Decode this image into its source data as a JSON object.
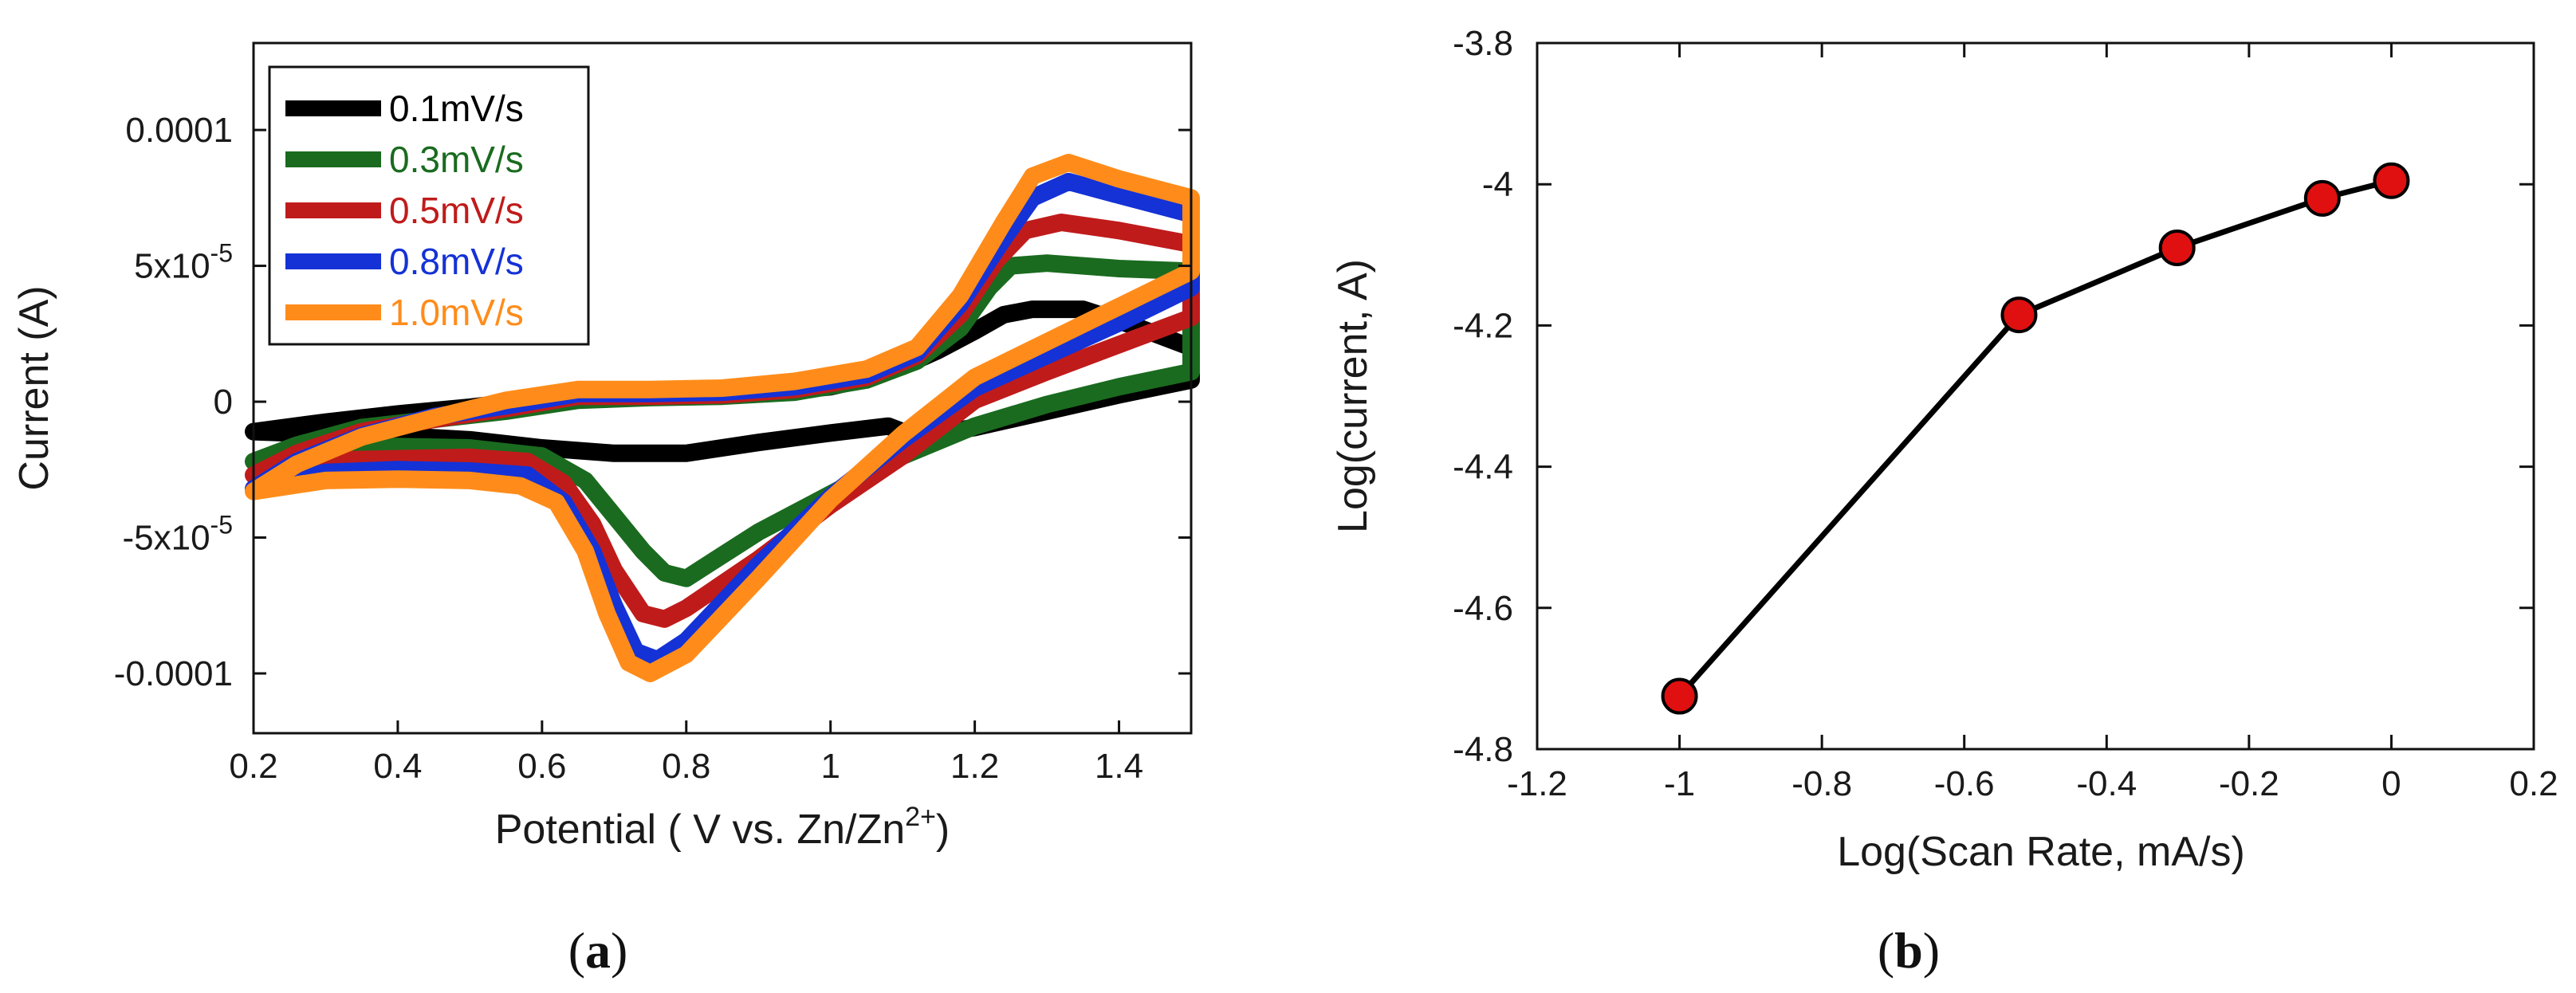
{
  "chart_data": [
    {
      "panel_label": "a",
      "type": "line",
      "title": "",
      "xlabel": "Potential ( V vs. Zn/Zn",
      "xlabel_sup": "2+",
      "xlabel_end": ")",
      "ylabel": "Current (A)",
      "xlim": [
        0.2,
        1.5
      ],
      "ylim": [
        -0.000122,
        0.000132
      ],
      "xticks": [
        {
          "value": 0.2,
          "label": "0.2"
        },
        {
          "value": 0.4,
          "label": "0.4"
        },
        {
          "value": 0.6,
          "label": "0.6"
        },
        {
          "value": 0.8,
          "label": "0.8"
        },
        {
          "value": 1.0,
          "label": "1"
        },
        {
          "value": 1.2,
          "label": "1.2"
        },
        {
          "value": 1.4,
          "label": "1.4"
        }
      ],
      "yticks": [
        {
          "value": 0.0001,
          "label": "0.0001",
          "sup": ""
        },
        {
          "value": 5e-05,
          "label": "5x10",
          "sup": "-5"
        },
        {
          "value": 0,
          "label": "0",
          "sup": ""
        },
        {
          "value": -5e-05,
          "label": "-5x10",
          "sup": "-5"
        },
        {
          "value": -0.0001,
          "label": "-0.0001",
          "sup": ""
        }
      ],
      "legend_position": "top-left",
      "series": [
        {
          "name": "0.1mV/s",
          "color": "#000000",
          "anodic": [
            [
              0.2,
              -1.1e-05
            ],
            [
              0.3,
              -7.5e-06
            ],
            [
              0.4,
              -4.5e-06
            ],
            [
              0.5,
              -2e-06
            ],
            [
              0.6,
              1e-06
            ],
            [
              0.7,
              2e-06
            ],
            [
              0.8,
              2.5e-06
            ],
            [
              0.9,
              3e-06
            ],
            [
              1.0,
              5.5e-06
            ],
            [
              1.05,
              8.5e-06
            ],
            [
              1.1,
              1.3e-05
            ],
            [
              1.15,
              1.9e-05
            ],
            [
              1.2,
              2.6e-05
            ],
            [
              1.24,
              3.2e-05
            ],
            [
              1.28,
              3.4e-05
            ],
            [
              1.35,
              3.4e-05
            ],
            [
              1.42,
              2.8e-05
            ],
            [
              1.5,
              2e-05
            ]
          ],
          "cathodic": [
            [
              1.5,
              8e-06
            ],
            [
              1.4,
              2.5e-06
            ],
            [
              1.3,
              -3.5e-06
            ],
            [
              1.2,
              -9.5e-06
            ],
            [
              1.12,
              -1.3e-05
            ],
            [
              1.08,
              -9e-06
            ],
            [
              1.0,
              -1.15e-05
            ],
            [
              0.9,
              -1.5e-05
            ],
            [
              0.8,
              -1.9e-05
            ],
            [
              0.7,
              -1.9e-05
            ],
            [
              0.6,
              -1.7e-05
            ],
            [
              0.5,
              -1.4e-05
            ],
            [
              0.4,
              -1.25e-05
            ],
            [
              0.3,
              -1.2e-05
            ],
            [
              0.2,
              -1.1e-05
            ]
          ]
        },
        {
          "name": "0.3mV/s",
          "color": "#1a6b1f",
          "anodic": [
            [
              0.2,
              -2.2e-05
            ],
            [
              0.26,
              -1.6e-05
            ],
            [
              0.35,
              -9.5e-06
            ],
            [
              0.45,
              -6.5e-06
            ],
            [
              0.55,
              -3.5e-06
            ],
            [
              0.65,
              5e-07
            ],
            [
              0.75,
              1.5e-06
            ],
            [
              0.85,
              2e-06
            ],
            [
              0.95,
              3.5e-06
            ],
            [
              1.05,
              8e-06
            ],
            [
              1.12,
              1.5e-05
            ],
            [
              1.18,
              2.7e-05
            ],
            [
              1.22,
              4.2e-05
            ],
            [
              1.25,
              5e-05
            ],
            [
              1.3,
              5.1e-05
            ],
            [
              1.4,
              4.9e-05
            ],
            [
              1.5,
              4.8e-05
            ]
          ],
          "cathodic": [
            [
              1.5,
              1.1e-05
            ],
            [
              1.4,
              5.5e-06
            ],
            [
              1.3,
              -1e-06
            ],
            [
              1.2,
              -9e-06
            ],
            [
              1.1,
              -2e-05
            ],
            [
              1.0,
              -3.4e-05
            ],
            [
              0.9,
              -4.8e-05
            ],
            [
              0.8,
              -6.5e-05
            ],
            [
              0.77,
              -6.3e-05
            ],
            [
              0.74,
              -5.5e-05
            ],
            [
              0.7,
              -4.2e-05
            ],
            [
              0.66,
              -2.9e-05
            ],
            [
              0.6,
              -2e-05
            ],
            [
              0.5,
              -1.7e-05
            ],
            [
              0.4,
              -1.65e-05
            ],
            [
              0.3,
              -1.7e-05
            ],
            [
              0.2,
              -2.2e-05
            ]
          ]
        },
        {
          "name": "0.5mV/s",
          "color": "#c01b1b",
          "anodic": [
            [
              0.2,
              -2.7e-05
            ],
            [
              0.26,
              -1.9e-05
            ],
            [
              0.35,
              -1.1e-05
            ],
            [
              0.45,
              -6.5e-06
            ],
            [
              0.55,
              -2.5e-06
            ],
            [
              0.65,
              2e-06
            ],
            [
              0.75,
              2e-06
            ],
            [
              0.85,
              2.5e-06
            ],
            [
              0.95,
              4.5e-06
            ],
            [
              1.05,
              9e-06
            ],
            [
              1.12,
              1.7e-05
            ],
            [
              1.18,
              3.2e-05
            ],
            [
              1.23,
              5.2e-05
            ],
            [
              1.27,
              6.3e-05
            ],
            [
              1.32,
              6.6e-05
            ],
            [
              1.4,
              6.3e-05
            ],
            [
              1.5,
              5.8e-05
            ]
          ],
          "cathodic": [
            [
              1.5,
              3.1e-05
            ],
            [
              1.4,
              2.1e-05
            ],
            [
              1.3,
              1.1e-05
            ],
            [
              1.2,
              5e-07
            ],
            [
              1.1,
              -2e-05
            ],
            [
              1.0,
              -3.8e-05
            ],
            [
              0.9,
              -5.8e-05
            ],
            [
              0.8,
              -7.6e-05
            ],
            [
              0.77,
              -8e-05
            ],
            [
              0.74,
              -7.8e-05
            ],
            [
              0.7,
              -6.2e-05
            ],
            [
              0.67,
              -4.5e-05
            ],
            [
              0.63,
              -3e-05
            ],
            [
              0.58,
              -2.2e-05
            ],
            [
              0.5,
              -2.05e-05
            ],
            [
              0.4,
              -2.1e-05
            ],
            [
              0.3,
              -2.15e-05
            ],
            [
              0.2,
              -2.7e-05
            ]
          ]
        },
        {
          "name": "0.8mV/s",
          "color": "#1432d6",
          "anodic": [
            [
              0.2,
              -3.2e-05
            ],
            [
              0.26,
              -2.2e-05
            ],
            [
              0.35,
              -1.25e-05
            ],
            [
              0.45,
              -5.5e-06
            ],
            [
              0.55,
              -1.5e-06
            ],
            [
              0.65,
              3e-06
            ],
            [
              0.75,
              3e-06
            ],
            [
              0.85,
              3.5e-06
            ],
            [
              0.95,
              5.5e-06
            ],
            [
              1.05,
              1e-05
            ],
            [
              1.12,
              1.8e-05
            ],
            [
              1.18,
              3.6e-05
            ],
            [
              1.24,
              6e-05
            ],
            [
              1.28,
              7.5e-05
            ],
            [
              1.33,
              8.1e-05
            ],
            [
              1.4,
              7.6e-05
            ],
            [
              1.5,
              6.9e-05
            ]
          ],
          "cathodic": [
            [
              1.5,
              4.2e-05
            ],
            [
              1.4,
              2.9e-05
            ],
            [
              1.3,
              1.7e-05
            ],
            [
              1.2,
              5e-06
            ],
            [
              1.1,
              -1.4e-05
            ],
            [
              1.0,
              -3.5e-05
            ],
            [
              0.9,
              -6e-05
            ],
            [
              0.8,
              -8.8e-05
            ],
            [
              0.76,
              -9.5e-05
            ],
            [
              0.73,
              -9.2e-05
            ],
            [
              0.7,
              -7.5e-05
            ],
            [
              0.67,
              -5.5e-05
            ],
            [
              0.63,
              -3.7e-05
            ],
            [
              0.58,
              -2.7e-05
            ],
            [
              0.5,
              -2.55e-05
            ],
            [
              0.4,
              -2.5e-05
            ],
            [
              0.3,
              -2.6e-05
            ],
            [
              0.2,
              -3.2e-05
            ]
          ]
        },
        {
          "name": "1.0mV/s",
          "color": "#ff8c1a",
          "anodic": [
            [
              0.2,
              -3.3e-05
            ],
            [
              0.26,
              -2.3e-05
            ],
            [
              0.35,
              -1.3e-05
            ],
            [
              0.45,
              -6e-06
            ],
            [
              0.55,
              5e-07
            ],
            [
              0.65,
              4.5e-06
            ],
            [
              0.75,
              4.5e-06
            ],
            [
              0.85,
              5e-06
            ],
            [
              0.95,
              7.5e-06
            ],
            [
              1.05,
              1.2e-05
            ],
            [
              1.12,
              2e-05
            ],
            [
              1.18,
              3.9e-05
            ],
            [
              1.24,
              6.6e-05
            ],
            [
              1.28,
              8.3e-05
            ],
            [
              1.33,
              8.8e-05
            ],
            [
              1.4,
              8.2e-05
            ],
            [
              1.5,
              7.5e-05
            ]
          ],
          "cathodic": [
            [
              1.5,
              4.8e-05
            ],
            [
              1.4,
              3.5e-05
            ],
            [
              1.3,
              2.2e-05
            ],
            [
              1.2,
              9e-06
            ],
            [
              1.1,
              -1.2e-05
            ],
            [
              1.0,
              -3.6e-05
            ],
            [
              0.9,
              -6.5e-05
            ],
            [
              0.8,
              -9.3e-05
            ],
            [
              0.75,
              -0.0001
            ],
            [
              0.72,
              -9.6e-05
            ],
            [
              0.69,
              -7.8e-05
            ],
            [
              0.66,
              -5.5e-05
            ],
            [
              0.62,
              -3.7e-05
            ],
            [
              0.57,
              -3.1e-05
            ],
            [
              0.5,
              -2.9e-05
            ],
            [
              0.4,
              -2.85e-05
            ],
            [
              0.3,
              -2.9e-05
            ],
            [
              0.2,
              -3.3e-05
            ]
          ]
        }
      ]
    },
    {
      "panel_label": "b",
      "type": "line",
      "title": "",
      "xlabel": "Log(Scan Rate, mA/s)",
      "ylabel": "Log(current, A)",
      "xlim": [
        -1.2,
        0.2
      ],
      "ylim": [
        -4.8,
        -3.8
      ],
      "xticks": [
        {
          "value": -1.2,
          "label": "-1.2"
        },
        {
          "value": -1.0,
          "label": "-1"
        },
        {
          "value": -0.8,
          "label": "-0.8"
        },
        {
          "value": -0.6,
          "label": "-0.6"
        },
        {
          "value": -0.4,
          "label": "-0.4"
        },
        {
          "value": -0.2,
          "label": "-0.2"
        },
        {
          "value": 0.0,
          "label": "0"
        },
        {
          "value": 0.2,
          "label": "0.2"
        }
      ],
      "yticks": [
        {
          "value": -3.8,
          "label": "-3.8"
        },
        {
          "value": -4.0,
          "label": "-4"
        },
        {
          "value": -4.2,
          "label": "-4.2"
        },
        {
          "value": -4.4,
          "label": "-4.4"
        },
        {
          "value": -4.6,
          "label": "-4.6"
        },
        {
          "value": -4.8,
          "label": "-4.8"
        }
      ],
      "series": [
        {
          "name": "Log(current)",
          "line_color": "#000000",
          "marker_color": "#e01010",
          "x": [
            -1.0,
            -0.523,
            -0.301,
            -0.097,
            0.0
          ],
          "y": [
            -4.725,
            -4.185,
            -4.09,
            -4.02,
            -3.995
          ]
        }
      ]
    }
  ]
}
